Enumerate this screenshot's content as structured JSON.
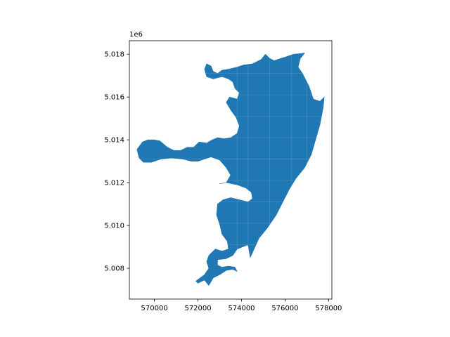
{
  "figure": {
    "offset_text": "1e6",
    "fill_color": "#1f77b4",
    "edge_color": "#ffffff",
    "axis_color": "#000000"
  },
  "chart_data": {
    "type": "map",
    "title": "",
    "xlabel": "",
    "ylabel": "",
    "grid": false,
    "xlim": [
      568850,
      578150
    ],
    "ylim": [
      5006560,
      5018630
    ],
    "x_ticks": [
      {
        "value": 570000,
        "label": "570000"
      },
      {
        "value": 572000,
        "label": "572000"
      },
      {
        "value": 574000,
        "label": "574000"
      },
      {
        "value": 576000,
        "label": "576000"
      },
      {
        "value": 578000,
        "label": "578000"
      }
    ],
    "y_ticks": [
      {
        "value": 5008000,
        "label": "5.008"
      },
      {
        "value": 5010000,
        "label": "5.010"
      },
      {
        "value": 5012000,
        "label": "5.012"
      },
      {
        "value": 5014000,
        "label": "5.014"
      },
      {
        "value": 5016000,
        "label": "5.016"
      },
      {
        "value": 5018000,
        "label": "5.018"
      }
    ],
    "shape_outline": [
      [
        572000,
        5007300
      ],
      [
        572300,
        5007450
      ],
      [
        572500,
        5007200
      ],
      [
        572700,
        5007550
      ],
      [
        573000,
        5007700
      ],
      [
        573300,
        5007900
      ],
      [
        573600,
        5007950
      ],
      [
        573800,
        5007850
      ],
      [
        573700,
        5008050
      ],
      [
        573400,
        5008100
      ],
      [
        573100,
        5008050
      ],
      [
        572900,
        5008150
      ],
      [
        572900,
        5008400
      ],
      [
        573300,
        5008450
      ],
      [
        573600,
        5008600
      ],
      [
        573800,
        5008900
      ],
      [
        574300,
        5009100
      ],
      [
        574400,
        5008500
      ],
      [
        574800,
        5009400
      ],
      [
        575200,
        5009900
      ],
      [
        575600,
        5010500
      ],
      [
        575900,
        5011100
      ],
      [
        576200,
        5011700
      ],
      [
        576500,
        5012200
      ],
      [
        576900,
        5012700
      ],
      [
        577200,
        5013300
      ],
      [
        577400,
        5014000
      ],
      [
        577600,
        5014700
      ],
      [
        577750,
        5015500
      ],
      [
        577800,
        5016000
      ],
      [
        577600,
        5015800
      ],
      [
        577300,
        5015900
      ],
      [
        577100,
        5016500
      ],
      [
        576800,
        5017100
      ],
      [
        576600,
        5017400
      ],
      [
        576700,
        5017800
      ],
      [
        576900,
        5018050
      ],
      [
        576400,
        5018000
      ],
      [
        576100,
        5017900
      ],
      [
        575800,
        5017800
      ],
      [
        575500,
        5017700
      ],
      [
        575300,
        5017800
      ],
      [
        575100,
        5018000
      ],
      [
        574900,
        5017750
      ],
      [
        574500,
        5017550
      ],
      [
        574100,
        5017500
      ],
      [
        573800,
        5017400
      ],
      [
        573400,
        5017300
      ],
      [
        573100,
        5017250
      ],
      [
        572900,
        5017100
      ],
      [
        572700,
        5017200
      ],
      [
        572600,
        5017450
      ],
      [
        572400,
        5017550
      ],
      [
        572300,
        5017300
      ],
      [
        572400,
        5016950
      ],
      [
        572700,
        5016850
      ],
      [
        573100,
        5016950
      ],
      [
        573400,
        5016850
      ],
      [
        573600,
        5016700
      ],
      [
        573700,
        5016400
      ],
      [
        573900,
        5016200
      ],
      [
        573800,
        5015900
      ],
      [
        573450,
        5016000
      ],
      [
        573300,
        5015750
      ],
      [
        573500,
        5015400
      ],
      [
        573750,
        5015050
      ],
      [
        573900,
        5014650
      ],
      [
        573800,
        5014300
      ],
      [
        573500,
        5014100
      ],
      [
        573200,
        5014050
      ],
      [
        572900,
        5014100
      ],
      [
        572650,
        5014000
      ],
      [
        572400,
        5013850
      ],
      [
        572050,
        5013900
      ],
      [
        571800,
        5013650
      ],
      [
        571500,
        5013650
      ],
      [
        571200,
        5013500
      ],
      [
        570900,
        5013500
      ],
      [
        570600,
        5013650
      ],
      [
        570250,
        5013950
      ],
      [
        570000,
        5014000
      ],
      [
        569700,
        5014000
      ],
      [
        569450,
        5013900
      ],
      [
        569200,
        5013550
      ],
      [
        569300,
        5013150
      ],
      [
        569500,
        5012950
      ],
      [
        569850,
        5012950
      ],
      [
        570300,
        5013100
      ],
      [
        570800,
        5013150
      ],
      [
        571300,
        5013100
      ],
      [
        571700,
        5013000
      ],
      [
        572000,
        5013000
      ],
      [
        572300,
        5013100
      ],
      [
        572600,
        5013200
      ],
      [
        573000,
        5013050
      ],
      [
        573300,
        5012700
      ],
      [
        573500,
        5012350
      ],
      [
        573300,
        5012000
      ],
      [
        573000,
        5011950
      ],
      [
        573300,
        5012000
      ],
      [
        573800,
        5011900
      ],
      [
        574200,
        5011750
      ],
      [
        574450,
        5011550
      ],
      [
        574500,
        5011250
      ],
      [
        574300,
        5011100
      ],
      [
        573900,
        5011200
      ],
      [
        573500,
        5011300
      ],
      [
        573150,
        5011200
      ],
      [
        572900,
        5011000
      ],
      [
        572850,
        5010500
      ],
      [
        573000,
        5010050
      ],
      [
        573100,
        5009600
      ],
      [
        573350,
        5009250
      ],
      [
        573400,
        5008900
      ],
      [
        573100,
        5008800
      ],
      [
        572800,
        5008900
      ],
      [
        572500,
        5008600
      ],
      [
        572400,
        5008300
      ],
      [
        572500,
        5008000
      ],
      [
        572300,
        5007700
      ],
      [
        571900,
        5007400
      ]
    ]
  }
}
